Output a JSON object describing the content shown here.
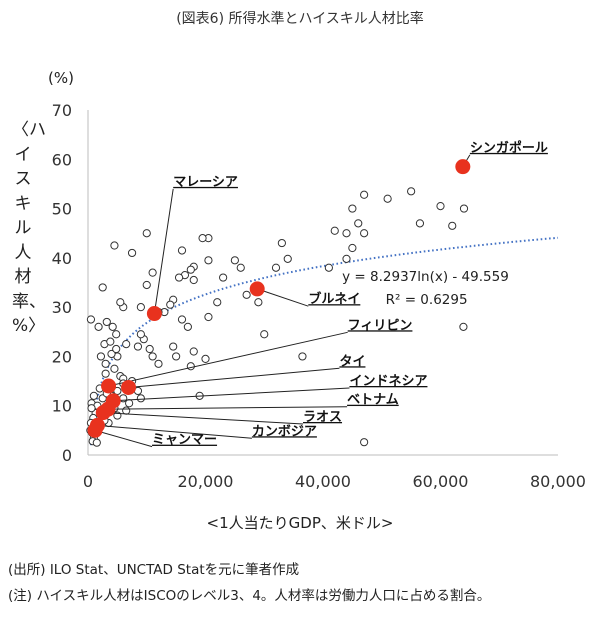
{
  "title": "(図表6) 所得水準とハイスキル人材比率",
  "chart_data": {
    "type": "scatter",
    "y_unit": "(%)",
    "ylabel": "〈ハイスキル人材率、%〉",
    "xlabel": "<1人当たりGDP、米ドル>",
    "xlim": [
      0,
      80000
    ],
    "ylim": [
      0,
      70
    ],
    "x_ticks": [
      0,
      20000,
      40000,
      60000,
      80000
    ],
    "x_tick_labels": [
      "0",
      "20,000",
      "40,000",
      "60,000",
      "80,000"
    ],
    "y_ticks": [
      0,
      10,
      20,
      30,
      40,
      50,
      60,
      70
    ],
    "y_tick_labels": [
      "0",
      "10",
      "20",
      "30",
      "40",
      "50",
      "60",
      "70"
    ],
    "trendline": {
      "type": "log",
      "a": 8.2937,
      "b": -49.559,
      "equation": "y = 8.2937ln(x) - 49.559",
      "r2_label": "R² = 0.6295",
      "color": "#4472c4"
    },
    "highlight_color": "#e8321e",
    "highlighted": [
      {
        "name": "シンガポール",
        "x": 63800,
        "y": 58.5,
        "lx": 65000,
        "ly": 61.5
      },
      {
        "name": "マレーシア",
        "x": 11300,
        "y": 28.7,
        "lx": 14500,
        "ly": 54.6
      },
      {
        "name": "ブルネイ",
        "x": 28800,
        "y": 33.7,
        "lx": 37500,
        "ly": 30.8
      },
      {
        "name": "フィリピン",
        "x": 3500,
        "y": 14.0,
        "lx": 44200,
        "ly": 25.5
      },
      {
        "name": "タイ",
        "x": 6900,
        "y": 13.7,
        "lx": 42800,
        "ly": 18.2
      },
      {
        "name": "インドネシア",
        "x": 4300,
        "y": 11.0,
        "lx": 44500,
        "ly": 14.2
      },
      {
        "name": "ベトナム",
        "x": 3400,
        "y": 9.3,
        "lx": 44100,
        "ly": 10.4
      },
      {
        "name": "ラオス",
        "x": 2600,
        "y": 8.6,
        "lx": 36600,
        "ly": 6.9
      },
      {
        "name": "カンボジア",
        "x": 1600,
        "y": 6.0,
        "lx": 27900,
        "ly": 4.0
      },
      {
        "name": "ミャンマー",
        "x": 1200,
        "y": 5.0,
        "lx": 10900,
        "ly": 2.3
      }
    ],
    "others": [
      [
        47000,
        2.6
      ],
      [
        63900,
        26.0
      ],
      [
        64000,
        50.0
      ],
      [
        62000,
        46.5
      ],
      [
        60000,
        50.5
      ],
      [
        55000,
        53.5
      ],
      [
        56500,
        47.0
      ],
      [
        51000,
        52.0
      ],
      [
        47000,
        52.8
      ],
      [
        46000,
        47.0
      ],
      [
        45000,
        50.0
      ],
      [
        42000,
        45.5
      ],
      [
        44000,
        45.0
      ],
      [
        47000,
        45.0
      ],
      [
        45000,
        42.0
      ],
      [
        44000,
        39.8
      ],
      [
        41000,
        38.0
      ],
      [
        36500,
        20.0
      ],
      [
        34000,
        39.8
      ],
      [
        33000,
        43.0
      ],
      [
        32000,
        38.0
      ],
      [
        30000,
        24.5
      ],
      [
        29000,
        31.0
      ],
      [
        27000,
        32.5
      ],
      [
        26000,
        38.0
      ],
      [
        25000,
        39.5
      ],
      [
        23000,
        36.0
      ],
      [
        22000,
        31.0
      ],
      [
        20500,
        44.0
      ],
      [
        19500,
        44.0
      ],
      [
        20500,
        39.5
      ],
      [
        18000,
        38.2
      ],
      [
        18000,
        35.5
      ],
      [
        17500,
        37.6
      ],
      [
        16500,
        36.5
      ],
      [
        16000,
        41.5
      ],
      [
        15500,
        36.0
      ],
      [
        14500,
        31.5
      ],
      [
        14000,
        30.5
      ],
      [
        14500,
        22.0
      ],
      [
        15000,
        20.0
      ],
      [
        13000,
        29.0
      ],
      [
        12000,
        29.0
      ],
      [
        10000,
        45.0
      ],
      [
        11000,
        37.0
      ],
      [
        10000,
        34.5
      ],
      [
        9000,
        30.0
      ],
      [
        17000,
        26.0
      ],
      [
        16000,
        27.5
      ],
      [
        20500,
        28.0
      ],
      [
        18000,
        21.0
      ],
      [
        20000,
        19.5
      ],
      [
        17500,
        18.0
      ],
      [
        19000,
        12.0
      ],
      [
        12000,
        18.5
      ],
      [
        11000,
        20.0
      ],
      [
        10500,
        21.5
      ],
      [
        9500,
        23.5
      ],
      [
        9000,
        24.5
      ],
      [
        8500,
        22.0
      ],
      [
        7500,
        41.0
      ],
      [
        4500,
        42.5
      ],
      [
        6000,
        30.0
      ],
      [
        5500,
        31.0
      ],
      [
        2500,
        34.0
      ],
      [
        500,
        27.5
      ],
      [
        1800,
        26.0
      ],
      [
        3200,
        27.0
      ],
      [
        4200,
        26.0
      ],
      [
        4800,
        24.5
      ],
      [
        6500,
        22.5
      ],
      [
        5000,
        20.0
      ],
      [
        4000,
        20.5
      ],
      [
        2800,
        22.5
      ],
      [
        2200,
        20.0
      ],
      [
        3000,
        16.5
      ],
      [
        4500,
        17.5
      ],
      [
        5500,
        16.0
      ],
      [
        6000,
        15.5
      ],
      [
        6000,
        14.5
      ],
      [
        7500,
        15.0
      ],
      [
        8500,
        13.0
      ],
      [
        9000,
        11.5
      ],
      [
        5000,
        13.0
      ],
      [
        4000,
        12.0
      ],
      [
        2000,
        13.5
      ],
      [
        1000,
        12.0
      ],
      [
        600,
        10.5
      ],
      [
        1600,
        10.0
      ],
      [
        2500,
        11.5
      ],
      [
        3200,
        12.5
      ],
      [
        1300,
        8.5
      ],
      [
        900,
        7.5
      ],
      [
        500,
        6.5
      ],
      [
        400,
        5.0
      ],
      [
        700,
        4.5
      ],
      [
        1000,
        3.5
      ],
      [
        800,
        2.8
      ],
      [
        1500,
        2.5
      ],
      [
        600,
        9.5
      ],
      [
        5000,
        8.0
      ],
      [
        4500,
        9.5
      ],
      [
        6500,
        9.0
      ],
      [
        7000,
        10.5
      ],
      [
        6000,
        11.5
      ],
      [
        3500,
        6.5
      ],
      [
        2800,
        7.0
      ],
      [
        3000,
        18.5
      ],
      [
        4800,
        21.5
      ],
      [
        3800,
        23.0
      ]
    ]
  },
  "footnotes": {
    "source": "(出所) ILO Stat、UNCTAD Statを元に筆者作成",
    "note": "(注) ハイスキル人材はISCOのレベル3、4。人材率は労働力人口に占める割合。"
  }
}
